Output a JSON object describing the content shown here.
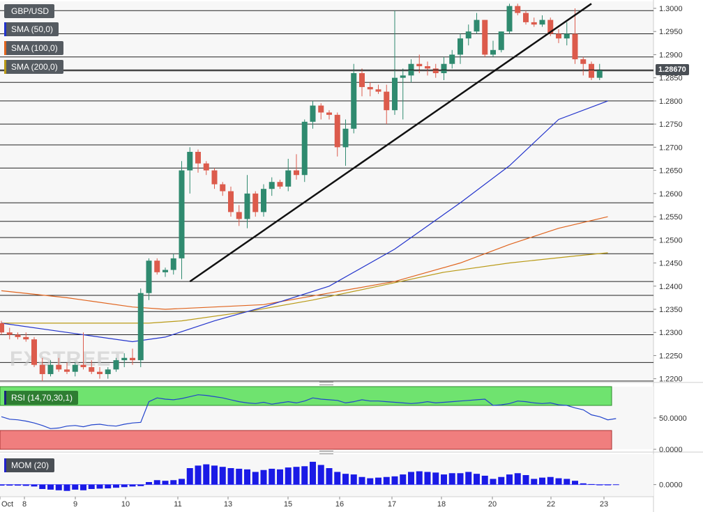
{
  "chart_data": [
    {
      "type": "candlestick",
      "symbol": "GBP/USD",
      "indicators": [
        {
          "name": "SMA (50,0)",
          "color": "#2233cc"
        },
        {
          "name": "SMA (100,0)",
          "color": "#e0641e"
        },
        {
          "name": "SMA (200,0)",
          "color": "#b99a16"
        }
      ],
      "ylim": [
        1.2195,
        1.3015
      ],
      "yticks": [
        "1.3000",
        "1.2950",
        "1.2900",
        "1.2850",
        "1.2800",
        "1.2750",
        "1.2700",
        "1.2650",
        "1.2600",
        "1.2550",
        "1.2500",
        "1.2450",
        "1.2400",
        "1.2350",
        "1.2300",
        "1.2250",
        "1.2200"
      ],
      "last_price": "1.28670",
      "x_labels": [
        "Oct",
        "8",
        "9",
        "10",
        "11",
        "13",
        "15",
        "16",
        "17",
        "18",
        "20",
        "22",
        "23"
      ],
      "candles": [
        [
          1.232,
          1.2325,
          1.2295,
          1.23
        ],
        [
          1.23,
          1.231,
          1.2285,
          1.2295
        ],
        [
          1.2295,
          1.23,
          1.2285,
          1.229
        ],
        [
          1.229,
          1.23,
          1.228,
          1.2285
        ],
        [
          1.2285,
          1.229,
          1.2225,
          1.223
        ],
        [
          1.223,
          1.2245,
          1.2195,
          1.221
        ],
        [
          1.221,
          1.224,
          1.2205,
          1.223
        ],
        [
          1.223,
          1.2245,
          1.2215,
          1.222
        ],
        [
          1.222,
          1.2235,
          1.221,
          1.2215
        ],
        [
          1.2215,
          1.2235,
          1.2205,
          1.223
        ],
        [
          1.223,
          1.23,
          1.222,
          1.2225
        ],
        [
          1.2225,
          1.224,
          1.221,
          1.2215
        ],
        [
          1.2215,
          1.2225,
          1.22,
          1.221
        ],
        [
          1.221,
          1.2225,
          1.22,
          1.222
        ],
        [
          1.222,
          1.2245,
          1.2215,
          1.224
        ],
        [
          1.224,
          1.2255,
          1.2225,
          1.2245
        ],
        [
          1.2245,
          1.2265,
          1.223,
          1.224
        ],
        [
          1.224,
          1.2395,
          1.2225,
          1.2385
        ],
        [
          1.2385,
          1.246,
          1.237,
          1.2455
        ],
        [
          1.2455,
          1.246,
          1.2425,
          1.243
        ],
        [
          1.243,
          1.244,
          1.242,
          1.2435
        ],
        [
          1.2435,
          1.247,
          1.2425,
          1.246
        ],
        [
          1.246,
          1.267,
          1.2415,
          1.265
        ],
        [
          1.265,
          1.27,
          1.26,
          1.269
        ],
        [
          1.269,
          1.2695,
          1.2645,
          1.2665
        ],
        [
          1.2665,
          1.267,
          1.264,
          1.265
        ],
        [
          1.265,
          1.2655,
          1.261,
          1.262
        ],
        [
          1.262,
          1.2625,
          1.2595,
          1.2605
        ],
        [
          1.2605,
          1.2615,
          1.255,
          1.256
        ],
        [
          1.256,
          1.2575,
          1.253,
          1.2545
        ],
        [
          1.2545,
          1.264,
          1.2525,
          1.26
        ],
        [
          1.26,
          1.2605,
          1.255,
          1.256
        ],
        [
          1.256,
          1.262,
          1.255,
          1.261
        ],
        [
          1.261,
          1.2635,
          1.2595,
          1.2625
        ],
        [
          1.2625,
          1.263,
          1.261,
          1.2615
        ],
        [
          1.2615,
          1.2675,
          1.2605,
          1.265
        ],
        [
          1.265,
          1.2685,
          1.263,
          1.264
        ],
        [
          1.264,
          1.276,
          1.2625,
          1.2755
        ],
        [
          1.2755,
          1.28,
          1.274,
          1.279
        ],
        [
          1.279,
          1.2795,
          1.276,
          1.2775
        ],
        [
          1.2775,
          1.278,
          1.276,
          1.277
        ],
        [
          1.277,
          1.2775,
          1.268,
          1.27
        ],
        [
          1.27,
          1.276,
          1.266,
          1.274
        ],
        [
          1.274,
          1.288,
          1.273,
          1.286
        ],
        [
          1.286,
          1.287,
          1.281,
          1.283
        ],
        [
          1.283,
          1.284,
          1.281,
          1.2825
        ],
        [
          1.2825,
          1.2835,
          1.2815,
          1.282
        ],
        [
          1.282,
          1.2835,
          1.275,
          1.278
        ],
        [
          1.278,
          1.2995,
          1.277,
          1.285
        ],
        [
          1.285,
          1.287,
          1.276,
          1.2855
        ],
        [
          1.2855,
          1.289,
          1.284,
          1.288
        ],
        [
          1.288,
          1.29,
          1.286,
          1.2875
        ],
        [
          1.2875,
          1.2885,
          1.2855,
          1.287
        ],
        [
          1.287,
          1.288,
          1.285,
          1.286
        ],
        [
          1.286,
          1.2895,
          1.2845,
          1.288
        ],
        [
          1.288,
          1.291,
          1.287,
          1.29
        ],
        [
          1.29,
          1.2945,
          1.288,
          1.2935
        ],
        [
          1.2935,
          1.2965,
          1.292,
          1.295
        ],
        [
          1.295,
          1.299,
          1.2945,
          1.2975
        ],
        [
          1.2975,
          1.2975,
          1.2895,
          1.29
        ],
        [
          1.29,
          1.293,
          1.2895,
          1.291
        ],
        [
          1.291,
          1.295,
          1.2905,
          1.295
        ],
        [
          1.295,
          1.301,
          1.2945,
          1.3005
        ],
        [
          1.3005,
          1.301,
          1.2985,
          1.299
        ],
        [
          1.299,
          1.2995,
          1.2965,
          1.297
        ],
        [
          1.297,
          1.298,
          1.296,
          1.2965
        ],
        [
          1.2965,
          1.2985,
          1.296,
          1.2975
        ],
        [
          1.2975,
          1.298,
          1.294,
          1.2945
        ],
        [
          1.2945,
          1.2955,
          1.2925,
          1.2935
        ],
        [
          1.2935,
          1.297,
          1.292,
          1.2945
        ],
        [
          1.2945,
          1.3,
          1.288,
          1.289
        ],
        [
          1.289,
          1.2895,
          1.2855,
          1.288
        ],
        [
          1.288,
          1.2885,
          1.2845,
          1.285
        ],
        [
          1.285,
          1.288,
          1.2845,
          1.2867
        ]
      ],
      "sma50": [
        [
          0,
          1.232
        ],
        [
          8,
          1.23
        ],
        [
          16,
          1.228
        ],
        [
          20,
          1.229
        ],
        [
          26,
          1.2325
        ],
        [
          32,
          1.2355
        ],
        [
          40,
          1.24
        ],
        [
          48,
          1.248
        ],
        [
          56,
          1.258
        ],
        [
          62,
          1.266
        ],
        [
          68,
          1.276
        ],
        [
          74,
          1.28
        ]
      ],
      "sma100": [
        [
          0,
          1.239
        ],
        [
          8,
          1.2375
        ],
        [
          16,
          1.2355
        ],
        [
          20,
          1.235
        ],
        [
          26,
          1.2355
        ],
        [
          32,
          1.236
        ],
        [
          40,
          1.2385
        ],
        [
          48,
          1.241
        ],
        [
          56,
          1.245
        ],
        [
          62,
          1.249
        ],
        [
          68,
          1.2525
        ],
        [
          74,
          1.255
        ]
      ],
      "sma200": [
        [
          0,
          1.232
        ],
        [
          10,
          1.232
        ],
        [
          18,
          1.232
        ],
        [
          22,
          1.2325
        ],
        [
          30,
          1.2345
        ],
        [
          38,
          1.237
        ],
        [
          46,
          1.24
        ],
        [
          54,
          1.243
        ],
        [
          62,
          1.245
        ],
        [
          70,
          1.2465
        ],
        [
          74,
          1.2472
        ]
      ],
      "trendline": [
        [
          1.241
        ],
        [
          1.301
        ]
      ],
      "hlines": [
        1.2995,
        1.2945,
        1.2895,
        1.2865,
        1.284,
        1.28,
        1.275,
        1.2705,
        1.2655,
        1.258,
        1.254,
        1.2505,
        1.247,
        1.241,
        1.238,
        1.2345,
        1.2295,
        1.2235,
        1.2195
      ]
    },
    {
      "type": "line",
      "title": "RSI (14,70,30,1)",
      "ylim": [
        0,
        100
      ],
      "yticks": [
        "50.0000",
        "0.0000"
      ],
      "overbought": 70,
      "oversold": 30,
      "values": [
        52,
        48,
        47,
        45,
        42,
        38,
        33,
        34,
        37,
        38,
        36,
        39,
        40,
        38,
        37,
        40,
        42,
        43,
        76,
        82,
        80,
        79,
        81,
        84,
        87,
        86,
        84,
        82,
        79,
        76,
        74,
        73,
        75,
        72,
        74,
        76,
        74,
        77,
        82,
        80,
        79,
        78,
        74,
        76,
        79,
        77,
        77,
        76,
        75,
        74,
        73,
        74,
        76,
        74,
        75,
        76,
        77,
        78,
        79,
        80,
        70,
        71,
        73,
        77,
        76,
        74,
        73,
        74,
        71,
        70,
        66,
        63,
        55,
        52,
        47,
        49
      ]
    },
    {
      "type": "bar",
      "title": "MOM (20)",
      "ylim": [
        -0.009,
        0.024
      ],
      "yticks": [
        "0.0000"
      ],
      "values": [
        -0.0008,
        -0.0008,
        -0.0008,
        -0.001,
        -0.0015,
        -0.0035,
        -0.004,
        -0.0045,
        -0.005,
        -0.004,
        -0.0045,
        -0.0035,
        -0.0032,
        -0.003,
        -0.0025,
        -0.002,
        -0.0015,
        -0.0012,
        0.002,
        0.0035,
        0.003,
        0.0035,
        0.0045,
        0.013,
        0.015,
        0.016,
        0.015,
        0.014,
        0.013,
        0.0125,
        0.012,
        0.01,
        0.0115,
        0.0125,
        0.012,
        0.0135,
        0.014,
        0.0145,
        0.018,
        0.0155,
        0.013,
        0.01,
        0.0085,
        0.008,
        0.006,
        0.005,
        0.0055,
        0.006,
        0.0065,
        0.008,
        0.01,
        0.0105,
        0.01,
        0.0095,
        0.008,
        0.009,
        0.009,
        0.01,
        0.0085,
        0.007,
        0.0045,
        0.006,
        0.008,
        0.009,
        0.0075,
        0.0045,
        0.0055,
        0.006,
        0.005,
        0.0045,
        0.003,
        0.001,
        0.0004,
        -0.0002,
        -0.0003,
        0.0002
      ]
    }
  ]
}
